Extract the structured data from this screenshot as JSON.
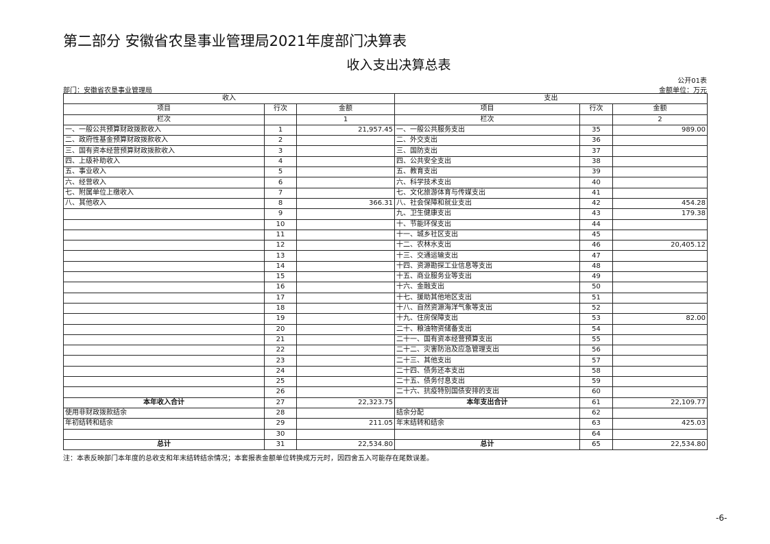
{
  "title": "第二部分  安徽省农垦事业管理局2021年度部门决算表",
  "subtitle": "收入支出决算总表",
  "form_no": "公开01表",
  "department": "部门：安徽省农垦事业管理局",
  "unit": "金额单位：万元",
  "headers": {
    "income": "收入",
    "expense": "支出",
    "item": "项目",
    "line_no": "行次",
    "amount": "金额",
    "column_no": "栏次",
    "income_col": "1",
    "expense_col": "2"
  },
  "rows": [
    {
      "li": "一、一般公共预算财政拨款收入",
      "ln": "1",
      "la": "21,957.45",
      "ri": "一、一般公共服务支出",
      "rn": "35",
      "ra": "989.00"
    },
    {
      "li": "二、政府性基金预算财政拨款收入",
      "ln": "2",
      "la": "",
      "ri": "二、外交支出",
      "rn": "36",
      "ra": ""
    },
    {
      "li": "三、国有资本经营预算财政拨款收入",
      "ln": "3",
      "la": "",
      "ri": "三、国防支出",
      "rn": "37",
      "ra": ""
    },
    {
      "li": "四、上级补助收入",
      "ln": "4",
      "la": "",
      "ri": "四、公共安全支出",
      "rn": "38",
      "ra": ""
    },
    {
      "li": "五、事业收入",
      "ln": "5",
      "la": "",
      "ri": "五、教育支出",
      "rn": "39",
      "ra": ""
    },
    {
      "li": "六、经营收入",
      "ln": "6",
      "la": "",
      "ri": "六、科学技术支出",
      "rn": "40",
      "ra": ""
    },
    {
      "li": "七、附属单位上缴收入",
      "ln": "7",
      "la": "",
      "ri": "七、文化旅游体育与传媒支出",
      "rn": "41",
      "ra": ""
    },
    {
      "li": "八、其他收入",
      "ln": "8",
      "la": "366.31",
      "ri": "八、社会保障和就业支出",
      "rn": "42",
      "ra": "454.28"
    },
    {
      "li": "",
      "ln": "9",
      "la": "",
      "ri": "九、卫生健康支出",
      "rn": "43",
      "ra": "179.38"
    },
    {
      "li": "",
      "ln": "10",
      "la": "",
      "ri": "十、节能环保支出",
      "rn": "44",
      "ra": ""
    },
    {
      "li": "",
      "ln": "11",
      "la": "",
      "ri": "十一、城乡社区支出",
      "rn": "45",
      "ra": ""
    },
    {
      "li": "",
      "ln": "12",
      "la": "",
      "ri": "十二、农林水支出",
      "rn": "46",
      "ra": "20,405.12"
    },
    {
      "li": "",
      "ln": "13",
      "la": "",
      "ri": "十三、交通运输支出",
      "rn": "47",
      "ra": ""
    },
    {
      "li": "",
      "ln": "14",
      "la": "",
      "ri": "十四、资源勘探工业信息等支出",
      "rn": "48",
      "ra": ""
    },
    {
      "li": "",
      "ln": "15",
      "la": "",
      "ri": "十五、商业服务业等支出",
      "rn": "49",
      "ra": ""
    },
    {
      "li": "",
      "ln": "16",
      "la": "",
      "ri": "十六、金融支出",
      "rn": "50",
      "ra": ""
    },
    {
      "li": "",
      "ln": "17",
      "la": "",
      "ri": "十七、援助其他地区支出",
      "rn": "51",
      "ra": ""
    },
    {
      "li": "",
      "ln": "18",
      "la": "",
      "ri": "十八、自然资源海洋气象等支出",
      "rn": "52",
      "ra": ""
    },
    {
      "li": "",
      "ln": "19",
      "la": "",
      "ri": "十九、住房保障支出",
      "rn": "53",
      "ra": "82.00"
    },
    {
      "li": "",
      "ln": "20",
      "la": "",
      "ri": "二十、粮油物资储备支出",
      "rn": "54",
      "ra": ""
    },
    {
      "li": "",
      "ln": "21",
      "la": "",
      "ri": "二十一、国有资本经营预算支出",
      "rn": "55",
      "ra": ""
    },
    {
      "li": "",
      "ln": "22",
      "la": "",
      "ri": "二十二、灾害防治及应急管理支出",
      "rn": "56",
      "ra": ""
    },
    {
      "li": "",
      "ln": "23",
      "la": "",
      "ri": "二十三、其他支出",
      "rn": "57",
      "ra": ""
    },
    {
      "li": "",
      "ln": "24",
      "la": "",
      "ri": "二十四、债务还本支出",
      "rn": "58",
      "ra": ""
    },
    {
      "li": "",
      "ln": "25",
      "la": "",
      "ri": "二十五、债务付息支出",
      "rn": "59",
      "ra": ""
    },
    {
      "li": "",
      "ln": "26",
      "la": "",
      "ri": "二十六、抗疫特别国债安排的支出",
      "rn": "60",
      "ra": ""
    },
    {
      "li": "本年收入合计",
      "ln": "27",
      "la": "22,323.75",
      "ri": "本年支出合计",
      "rn": "61",
      "ra": "22,109.77",
      "bold": true
    },
    {
      "li": "使用非财政拨款结余",
      "ln": "28",
      "la": "",
      "ri": "结余分配",
      "rn": "62",
      "ra": ""
    },
    {
      "li": "年初结转和结余",
      "ln": "29",
      "la": "211.05",
      "ri": "年末结转和结余",
      "rn": "63",
      "ra": "425.03"
    },
    {
      "li": "",
      "ln": "30",
      "la": "",
      "ri": "",
      "rn": "64",
      "ra": ""
    },
    {
      "li": "总计",
      "ln": "31",
      "la": "22,534.80",
      "ri": "总计",
      "rn": "65",
      "ra": "22,534.80",
      "bold": true
    }
  ],
  "note": "注：本表反映部门本年度的总收支和年末结转结余情况；本套报表金额单位转换成万元时，因四舍五入可能存在尾数误差。",
  "page_number": "-6-"
}
